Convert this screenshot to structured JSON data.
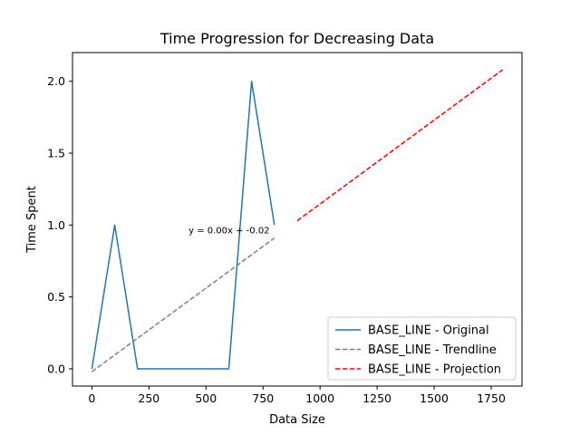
{
  "chart_data": {
    "type": "line",
    "title": "Time Progression for Decreasing Data",
    "xlabel": "Data Size",
    "ylabel": "Time Spent",
    "xlim": [
      -85,
      1885
    ],
    "ylim": [
      -0.12,
      2.2
    ],
    "x_ticks": [
      0,
      250,
      500,
      750,
      1000,
      1250,
      1500,
      1750
    ],
    "y_ticks": [
      0.0,
      0.5,
      1.0,
      1.5,
      2.0
    ],
    "x_tick_labels": [
      "0",
      "250",
      "500",
      "750",
      "1000",
      "1250",
      "1500",
      "1750"
    ],
    "y_tick_labels": [
      "0.0",
      "0.5",
      "1.0",
      "1.5",
      "2.0"
    ],
    "grid": false,
    "legend_position": "lower-right",
    "annotation": "y = 0.00x + -0.02",
    "series": [
      {
        "name": "BASE_LINE - Original",
        "style": "solid",
        "color": "#1f77b4",
        "x": [
          0,
          100,
          200,
          300,
          400,
          500,
          600,
          700,
          800
        ],
        "y": [
          0,
          1,
          0,
          0,
          0,
          0,
          0,
          2,
          1
        ]
      },
      {
        "name": "BASE_LINE - Trendline",
        "style": "dashed",
        "color": "#808080",
        "x": [
          0,
          800
        ],
        "y": [
          -0.02,
          0.91
        ]
      },
      {
        "name": "BASE_LINE - Projection",
        "style": "dashed",
        "color": "#ff0000",
        "x": [
          900,
          1800
        ],
        "y": [
          1.03,
          2.08
        ]
      }
    ]
  }
}
